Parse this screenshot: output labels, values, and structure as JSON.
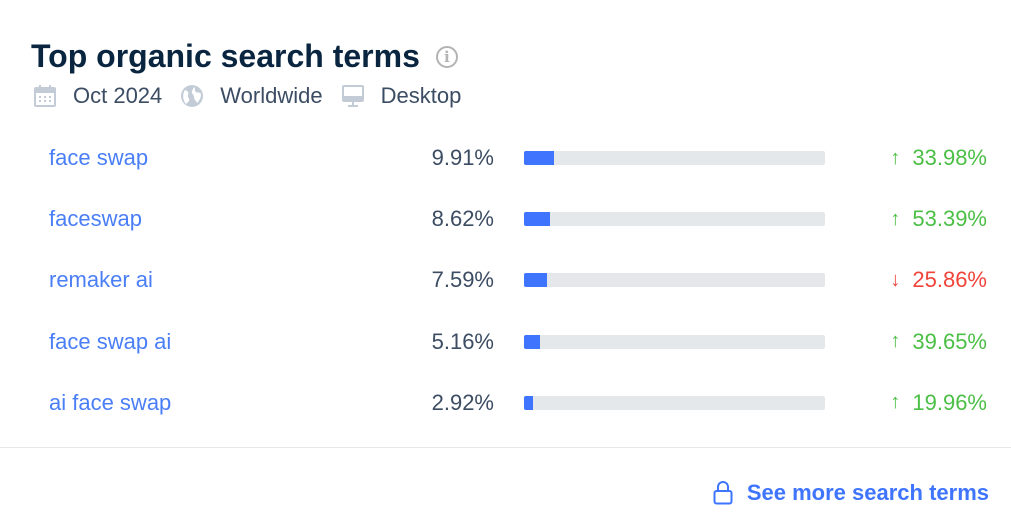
{
  "header": {
    "title": "Top organic search terms",
    "info_icon": "info-icon"
  },
  "meta": {
    "date": "Oct 2024",
    "region": "Worldwide",
    "device": "Desktop"
  },
  "colors": {
    "up": "#4bbf45",
    "down": "#f0443b",
    "bar": "#3e74fe",
    "track": "#e5e8eb",
    "link": "#4a7ef6"
  },
  "terms": [
    {
      "term": "face swap",
      "share": "9.91%",
      "share_value": 9.91,
      "direction": "up",
      "change": "33.98%"
    },
    {
      "term": "faceswap",
      "share": "8.62%",
      "share_value": 8.62,
      "direction": "up",
      "change": "53.39%"
    },
    {
      "term": "remaker ai",
      "share": "7.59%",
      "share_value": 7.59,
      "direction": "down",
      "change": "25.86%"
    },
    {
      "term": "face swap ai",
      "share": "5.16%",
      "share_value": 5.16,
      "direction": "up",
      "change": "39.65%"
    },
    {
      "term": "ai face swap",
      "share": "2.92%",
      "share_value": 2.92,
      "direction": "up",
      "change": "19.96%"
    }
  ],
  "footer": {
    "link": "See more search terms"
  }
}
